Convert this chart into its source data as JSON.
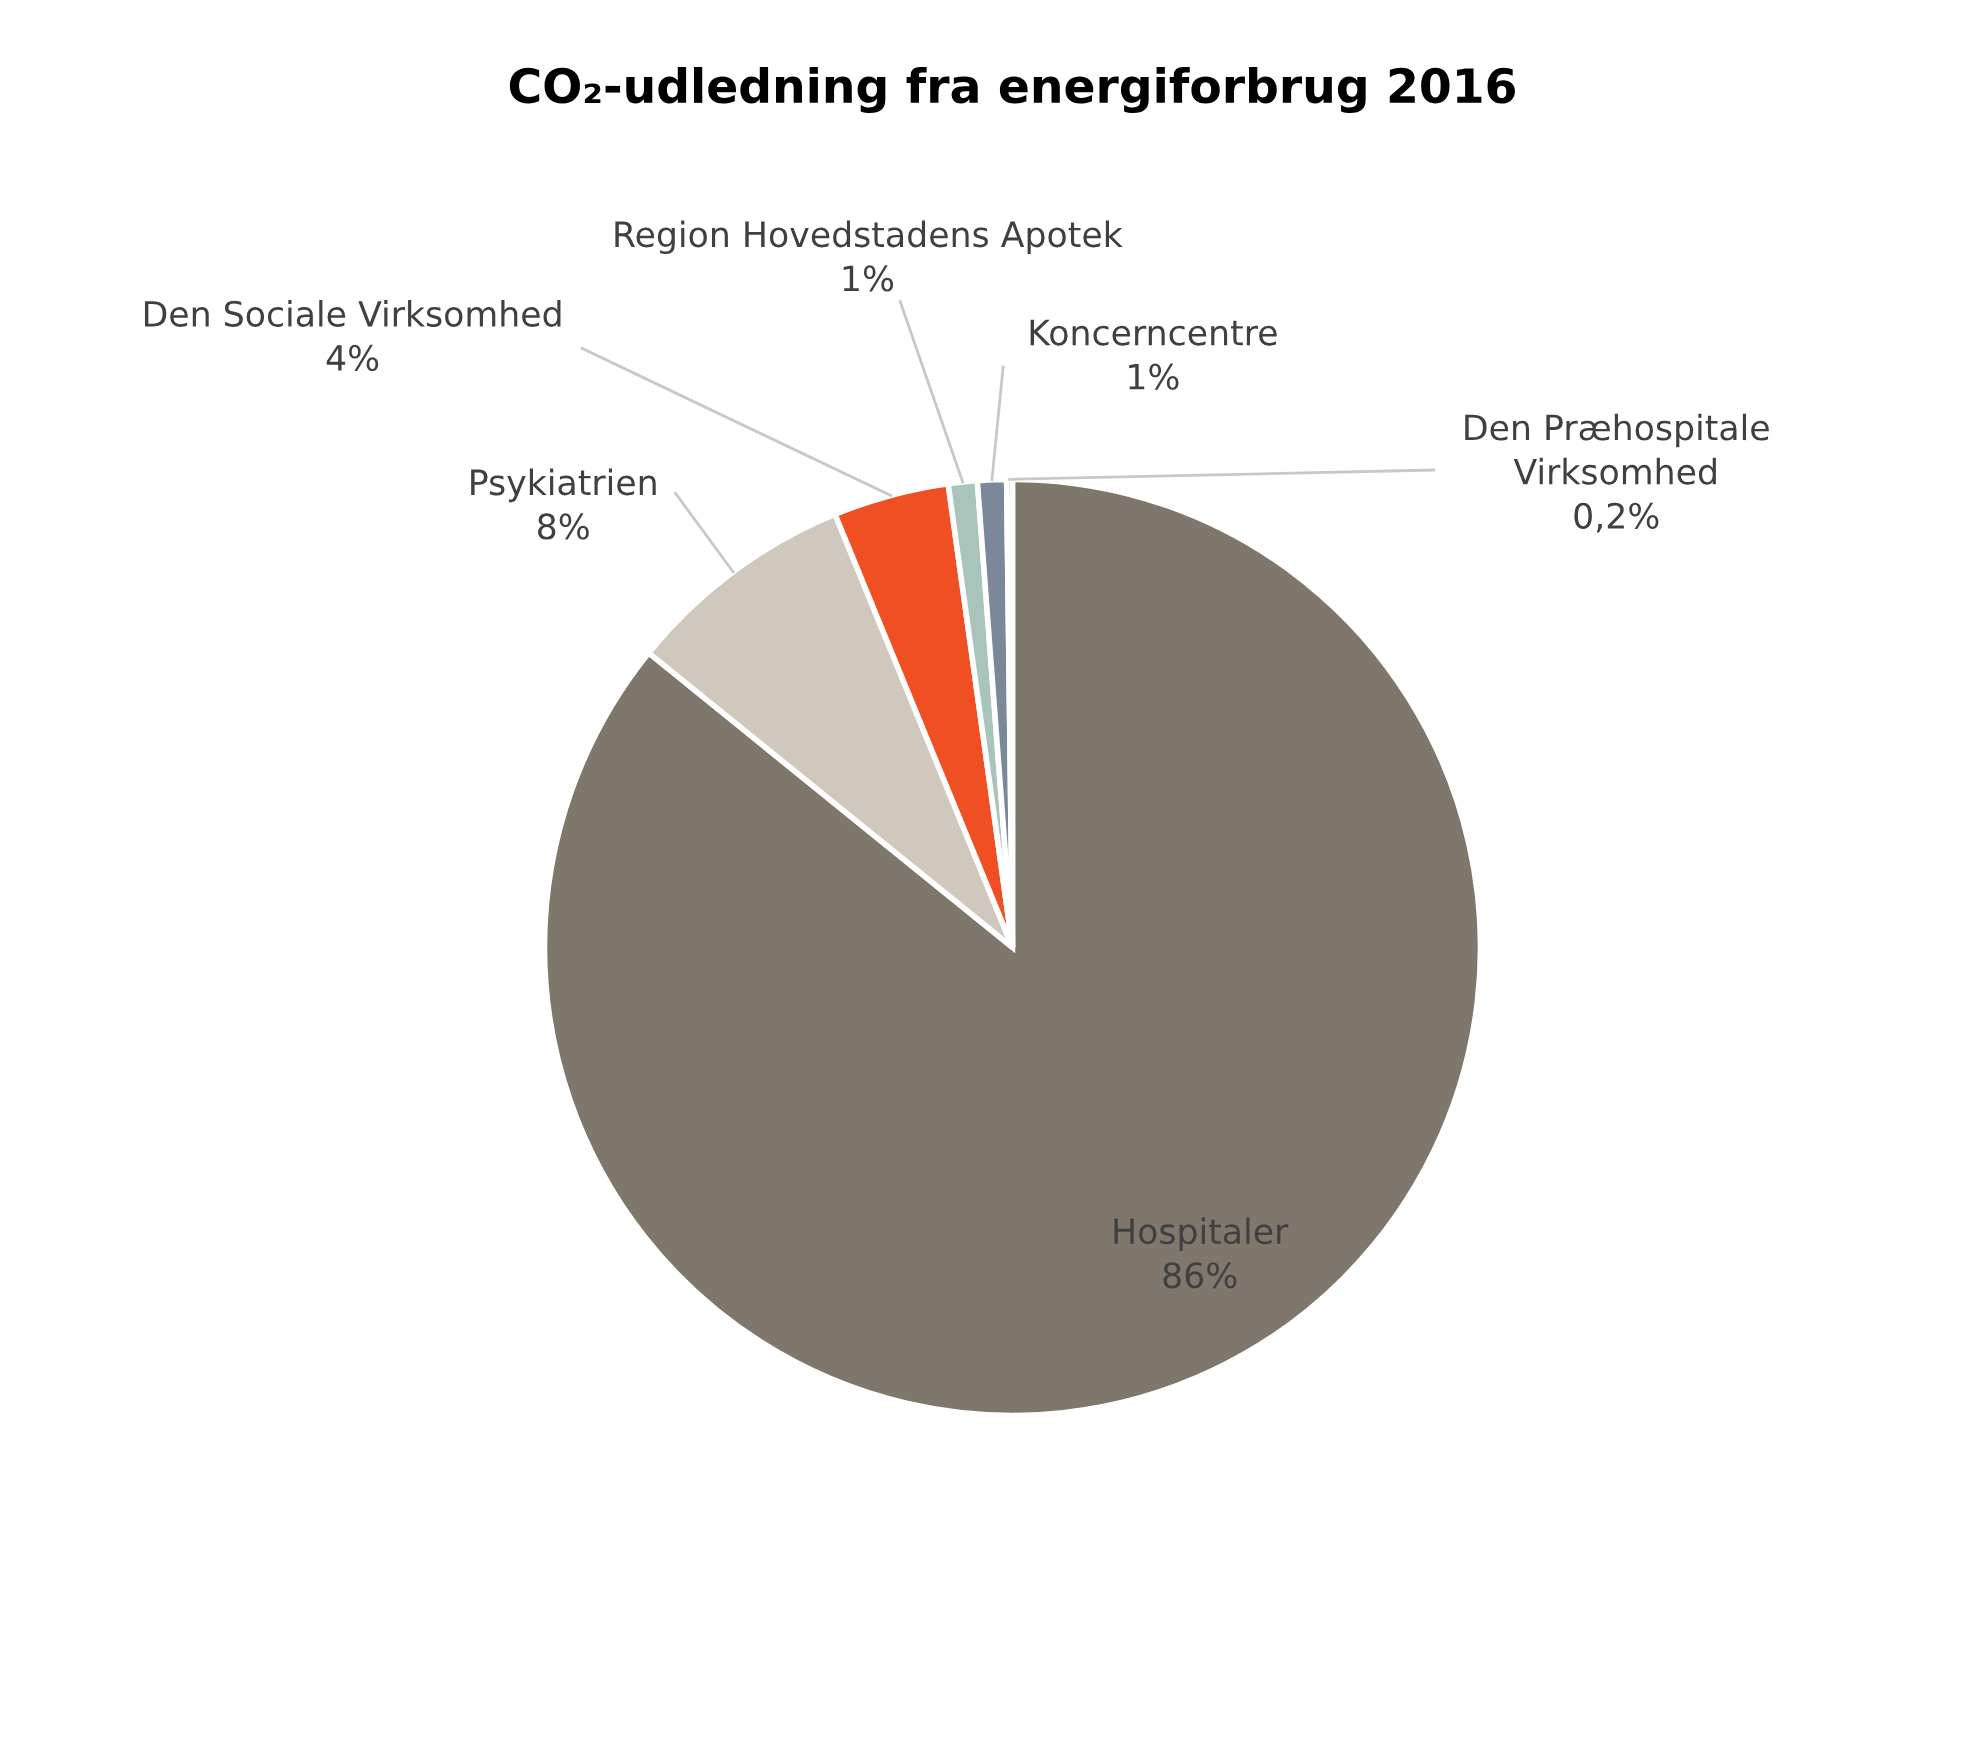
{
  "chart_data": {
    "type": "pie",
    "title": "CO₂-udledning fra energiforbrug 2016",
    "categories": [
      "Hospitaler",
      "Psykiatrien",
      "Den Sociale Virksomhed",
      "Region Hovedstadens Apotek",
      "Koncerncentre",
      "Den Præhospitale Virksomhed"
    ],
    "values": [
      86,
      8,
      4,
      1,
      1,
      0.2
    ],
    "value_labels": [
      "86%",
      "8%",
      "4%",
      "1%",
      "1%",
      "0,2%"
    ],
    "colors": [
      "#7f766c",
      "#d0c8bc",
      "#f04e23",
      "#a9c4bb",
      "#7a8899",
      "#8b9dab"
    ],
    "legend": false
  }
}
